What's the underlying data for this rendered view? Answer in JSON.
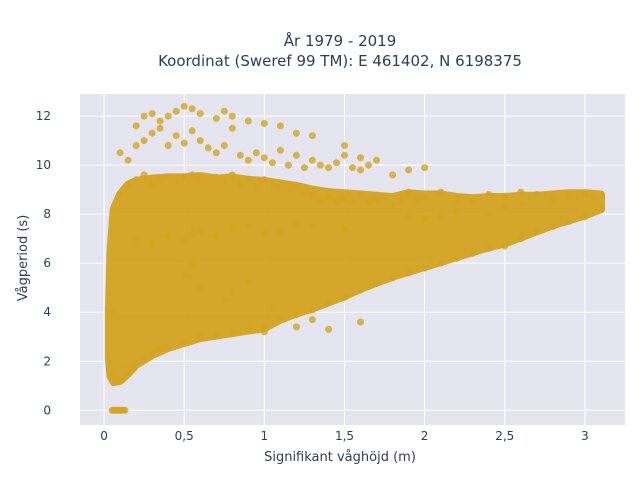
{
  "chart_data": {
    "type": "scatter",
    "title": [
      "År 1979 - 2019",
      "Koordinat (Sweref 99 TM): E 461402, N 6198375"
    ],
    "xlabel": "Signifikant våghöjd (m)",
    "ylabel": "Vågperiod (s)",
    "xlim": [
      -0.15,
      3.25
    ],
    "ylim": [
      -0.6,
      12.9
    ],
    "xticks": [
      0,
      0.5,
      1,
      1.5,
      2,
      2.5,
      3
    ],
    "xtick_labels": [
      "0",
      "0,5",
      "1",
      "1,5",
      "2",
      "2,5",
      "3"
    ],
    "yticks": [
      0,
      2,
      4,
      6,
      8,
      10,
      12
    ],
    "ytick_labels": [
      "0",
      "2",
      "4",
      "6",
      "8",
      "10",
      "12"
    ],
    "grid": true,
    "background": "#e5e5ef",
    "marker_color": "#d4a421",
    "series": [
      {
        "x": [
          0.05,
          0.06,
          0.07,
          0.08,
          0.09,
          0.1,
          0.11,
          0.12,
          0.13,
          0.03,
          0.04,
          0.05,
          0.06,
          0.08,
          0.1,
          0.12,
          0.15,
          0.18,
          0.2,
          0.25,
          0.3,
          0.35,
          0.4,
          0.5,
          0.6,
          0.7,
          0.8,
          0.9,
          1.0,
          1.1,
          1.2,
          1.3,
          1.4,
          1.5,
          1.6,
          1.7,
          1.8,
          1.9,
          2.0,
          2.1,
          2.2,
          2.3,
          2.4,
          2.5,
          2.6,
          2.7,
          2.8,
          2.9,
          3.0,
          3.1,
          0.05,
          0.1,
          0.15,
          0.2,
          0.25,
          0.3,
          0.35,
          0.4,
          0.45,
          0.5,
          0.55,
          0.6,
          0.65,
          0.7,
          0.75,
          0.8,
          0.85,
          0.9,
          0.95,
          1.0,
          1.05,
          1.1,
          1.15,
          1.2,
          1.25,
          1.3,
          1.35,
          1.4,
          1.45,
          1.5,
          1.55,
          1.6,
          1.65,
          1.7,
          1.75,
          1.8,
          1.85,
          1.9,
          1.95,
          2.0,
          2.1,
          2.2,
          2.3,
          2.4,
          2.5,
          2.6,
          2.7,
          2.8,
          2.9,
          3.0,
          0.1,
          0.15,
          0.2,
          0.25,
          0.3,
          0.35,
          0.4,
          0.45,
          0.5,
          0.55,
          0.6,
          0.65,
          0.7,
          0.75,
          0.8,
          0.85,
          0.9,
          0.95,
          1.0,
          1.05,
          1.1,
          1.15,
          1.2,
          1.25,
          1.3,
          1.35,
          1.4,
          1.45,
          1.5,
          1.55,
          1.6,
          1.65,
          1.7,
          1.8,
          1.9,
          2.0,
          0.2,
          0.25,
          0.3,
          0.35,
          0.4,
          0.45,
          0.5,
          0.55,
          0.6,
          0.7,
          0.75,
          0.8,
          0.9,
          1.0,
          1.1,
          1.2,
          1.3,
          1.5,
          1.6,
          0.2,
          0.3,
          0.4,
          0.5,
          0.55,
          0.6,
          0.7,
          0.8,
          0.9,
          1.0,
          1.1,
          1.2,
          1.3,
          1.5,
          1.9,
          2.0,
          2.1,
          2.2,
          2.4,
          2.5,
          2.6,
          2.8,
          2.9,
          3.0,
          3.05,
          1.6,
          1.4,
          1.2,
          1.0,
          1.3,
          0.5,
          0.55,
          0.6,
          0.75,
          0.8,
          0.9,
          1.05
        ],
        "y": [
          0,
          0,
          0,
          0,
          0,
          0,
          0,
          0,
          0,
          2.0,
          1.4,
          1.3,
          1.2,
          1.2,
          1.25,
          1.3,
          1.5,
          1.7,
          1.9,
          2.1,
          2.3,
          2.5,
          2.6,
          2.8,
          3.0,
          3.1,
          3.2,
          3.3,
          3.4,
          3.7,
          3.9,
          4.1,
          4.4,
          4.6,
          4.9,
          5.2,
          5.4,
          5.6,
          5.8,
          6.0,
          6.2,
          6.4,
          6.6,
          6.7,
          7.0,
          7.3,
          7.5,
          7.7,
          7.9,
          8.2,
          4.0,
          8.8,
          9.2,
          9.4,
          9.6,
          9.2,
          9.4,
          9.5,
          9.3,
          9.5,
          9.6,
          9.5,
          9.3,
          9.5,
          9.3,
          9.6,
          9.2,
          9.4,
          9.1,
          9.4,
          9.3,
          9.2,
          9.0,
          9.1,
          8.9,
          8.8,
          8.6,
          8.7,
          8.5,
          8.6,
          8.5,
          8.8,
          8.5,
          8.6,
          8.7,
          8.4,
          8.5,
          8.9,
          8.6,
          8.7,
          8.9,
          8.6,
          8.5,
          8.8,
          8.7,
          8.9,
          8.8,
          8.7,
          8.8,
          8.8,
          10.5,
          10.2,
          10.8,
          11.0,
          11.3,
          11.5,
          10.8,
          11.2,
          10.9,
          11.4,
          11.0,
          10.7,
          10.5,
          10.8,
          11.5,
          10.4,
          10.2,
          10.5,
          10.3,
          10.1,
          10.6,
          10.0,
          10.4,
          9.9,
          10.2,
          10.0,
          9.9,
          10.1,
          10.4,
          9.9,
          9.8,
          10.0,
          10.2,
          9.6,
          9.8,
          9.9,
          11.6,
          12.0,
          12.1,
          11.8,
          12.0,
          12.2,
          12.4,
          12.3,
          12.1,
          11.9,
          12.2,
          12.0,
          11.8,
          11.7,
          11.6,
          11.3,
          11.2,
          10.8,
          10.3,
          7.0,
          6.8,
          7.1,
          6.9,
          7.2,
          7.3,
          7.1,
          7.4,
          7.5,
          7.2,
          7.3,
          7.6,
          7.5,
          7.4,
          7.9,
          7.8,
          7.9,
          8.1,
          8.0,
          8.3,
          8.4,
          8.6,
          8.7,
          8.8,
          8.7,
          3.6,
          3.3,
          3.4,
          3.2,
          3.7,
          5.5,
          6.0,
          5.0,
          4.5,
          4.8,
          5.2,
          4.2
        ]
      }
    ]
  }
}
